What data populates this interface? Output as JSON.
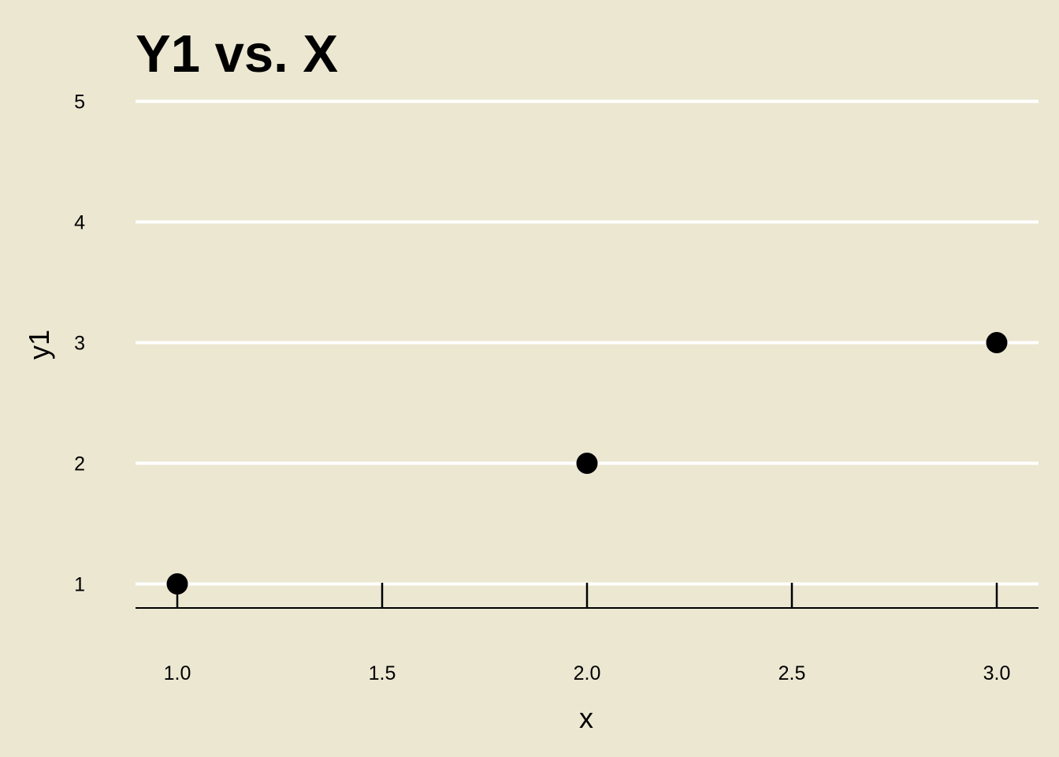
{
  "colors": {
    "background": "#ebe7d1",
    "gridline": "#ffffff",
    "ink": "#000000"
  },
  "chart_data": {
    "type": "scatter",
    "title": "Y1 vs. X",
    "xlabel": "x",
    "ylabel": "y1",
    "xlim": [
      0.9,
      3.1
    ],
    "ylim": [
      0.8,
      5.0
    ],
    "x_ticks": [
      1.0,
      1.5,
      2.0,
      2.5,
      3.0
    ],
    "x_tick_labels": [
      "1.0",
      "1.5",
      "2.0",
      "2.5",
      "3.0"
    ],
    "y_ticks": [
      1,
      2,
      3,
      4,
      5
    ],
    "y_tick_labels": [
      "1",
      "2",
      "3",
      "4",
      "5"
    ],
    "grid": "horizontal major lines",
    "legend": "none",
    "points": [
      {
        "x": 1,
        "y": 1
      },
      {
        "x": 2,
        "y": 2
      },
      {
        "x": 3,
        "y": 3
      }
    ]
  }
}
